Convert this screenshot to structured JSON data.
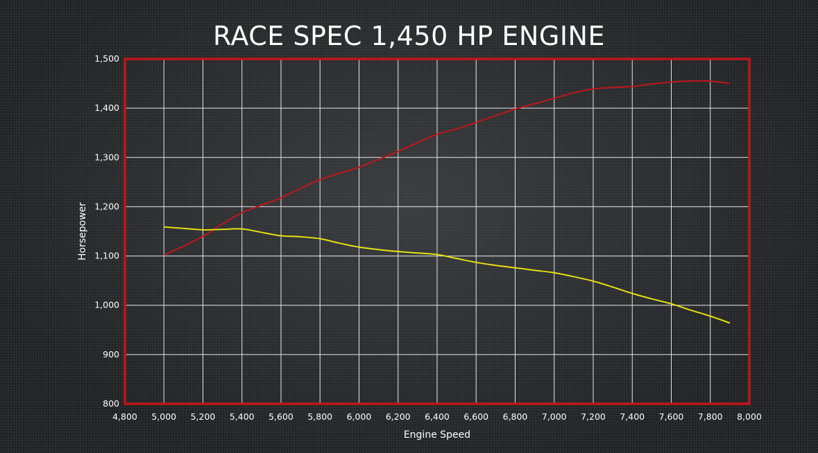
{
  "chart_data": {
    "type": "line",
    "title": "RACE SPEC 1,450 HP ENGINE",
    "xlabel": "Engine Speed",
    "ylabel": "Horsepower",
    "xlim": [
      4800,
      8000
    ],
    "ylim": [
      800,
      1500
    ],
    "x_ticks": [
      "4,800",
      "5,000",
      "5,200",
      "5,400",
      "5,600",
      "5,800",
      "6,000",
      "6,200",
      "6,400",
      "6,600",
      "6,800",
      "7,000",
      "7,200",
      "7,400",
      "7,600",
      "7,800",
      "8,000"
    ],
    "y_ticks": [
      "800",
      "900",
      "1,000",
      "1,100",
      "1,200",
      "1,300",
      "1,400",
      "1,500"
    ],
    "grid": true,
    "series": [
      {
        "color": "#c0161c",
        "x": [
          5000,
          5100,
          5200,
          5300,
          5400,
          5500,
          5600,
          5700,
          5800,
          5900,
          6000,
          6100,
          6200,
          6300,
          6400,
          6500,
          6600,
          6700,
          6800,
          6900,
          7000,
          7100,
          7200,
          7300,
          7400,
          7500,
          7600,
          7700,
          7800,
          7900
        ],
        "y": [
          1102,
          1120,
          1140,
          1165,
          1188,
          1203,
          1218,
          1237,
          1255,
          1268,
          1280,
          1296,
          1312,
          1330,
          1347,
          1358,
          1371,
          1385,
          1398,
          1409,
          1420,
          1431,
          1439,
          1442,
          1444,
          1449,
          1453,
          1455,
          1455,
          1450
        ]
      },
      {
        "color": "#e6e010",
        "x": [
          5000,
          5100,
          5200,
          5300,
          5400,
          5500,
          5600,
          5700,
          5800,
          5900,
          6000,
          6100,
          6200,
          6300,
          6400,
          6500,
          6600,
          6700,
          6800,
          6900,
          7000,
          7100,
          7200,
          7300,
          7400,
          7500,
          7600,
          7700,
          7800,
          7900
        ],
        "y": [
          1159,
          1156,
          1153,
          1154,
          1155,
          1148,
          1141,
          1139,
          1135,
          1126,
          1118,
          1113,
          1109,
          1106,
          1103,
          1095,
          1087,
          1081,
          1076,
          1071,
          1066,
          1058,
          1049,
          1037,
          1024,
          1013,
          1003,
          990,
          978,
          964
        ]
      }
    ],
    "colors": {
      "frame": "#c0161c",
      "grid": "#e8e8e8",
      "text": "#ffffff"
    }
  }
}
